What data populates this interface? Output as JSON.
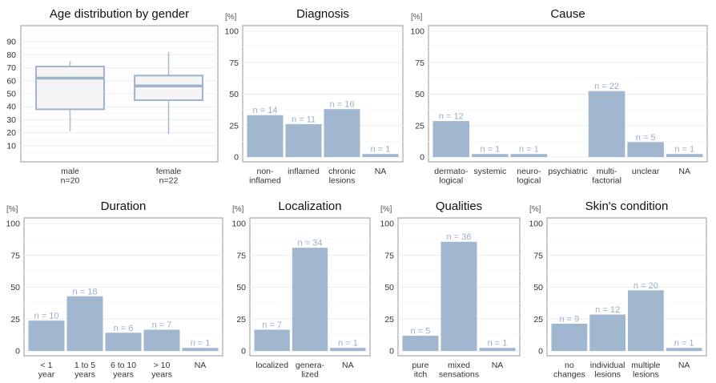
{
  "colors": {
    "bar": "#a1b6cf",
    "box": "#9fb4cc",
    "label": "#9aaec8"
  },
  "chart_data": [
    {
      "type": "box",
      "title": "Age distribution by gender",
      "ylabel": "",
      "ylim": [
        0,
        100
      ],
      "yticks": [
        10,
        20,
        30,
        40,
        50,
        60,
        70,
        80,
        90
      ],
      "grid": true,
      "categories": [
        "male\nn=20",
        "female\nn=22"
      ],
      "boxes": [
        {
          "whisker_low": 21,
          "q1": 38,
          "median": 62,
          "q3": 71,
          "whisker_high": 75
        },
        {
          "whisker_low": 19,
          "q1": 45,
          "median": 56,
          "q3": 64,
          "whisker_high": 82
        }
      ]
    },
    {
      "type": "bar",
      "title": "Diagnosis",
      "ylabel": "[%]",
      "ylim": [
        0,
        100
      ],
      "yticks": [
        0,
        25,
        50,
        75,
        100
      ],
      "grid": true,
      "categories": [
        "non-\ninflamed",
        "inflamed",
        "chronic\nlesions",
        "NA"
      ],
      "values": [
        33.3,
        26.2,
        38.1,
        2.4
      ],
      "labels": [
        "n = 14",
        "n = 11",
        "n = 16",
        "n = 1"
      ]
    },
    {
      "type": "bar",
      "title": "Cause",
      "ylabel": "[%]",
      "ylim": [
        0,
        100
      ],
      "yticks": [
        0,
        25,
        50,
        75,
        100
      ],
      "grid": true,
      "categories": [
        "dermato-\nlogical",
        "systemic",
        "neuro-\nlogical",
        "psychiatric",
        "multi-\nfactorial",
        "unclear",
        "NA"
      ],
      "values": [
        28.6,
        2.4,
        2.4,
        0,
        52.4,
        11.9,
        2.4
      ],
      "labels": [
        "n = 12",
        "n = 1",
        "n = 1",
        "",
        "n = 22",
        "n = 5",
        "n = 1"
      ]
    },
    {
      "type": "bar",
      "title": "Duration",
      "ylabel": "[%]",
      "ylim": [
        0,
        100
      ],
      "yticks": [
        0,
        25,
        50,
        75,
        100
      ],
      "grid": true,
      "categories": [
        "< 1\nyear",
        "1 to 5\nyears",
        "6 to 10\nyears",
        "> 10\nyears",
        "NA"
      ],
      "values": [
        23.8,
        42.9,
        14.3,
        16.7,
        2.4
      ],
      "labels": [
        "n = 10",
        "n = 18",
        "n = 6",
        "n = 7",
        "n = 1"
      ]
    },
    {
      "type": "bar",
      "title": "Localization",
      "ylabel": "[%]",
      "ylim": [
        0,
        100
      ],
      "yticks": [
        0,
        25,
        50,
        75,
        100
      ],
      "grid": true,
      "categories": [
        "localized",
        "genera-\nlized",
        "NA"
      ],
      "values": [
        16.7,
        81.0,
        2.4
      ],
      "labels": [
        "n = 7",
        "n = 34",
        "n = 1"
      ]
    },
    {
      "type": "bar",
      "title": "Qualities",
      "ylabel": "[%]",
      "ylim": [
        0,
        100
      ],
      "yticks": [
        0,
        25,
        50,
        75,
        100
      ],
      "grid": true,
      "categories": [
        "pure\nitch",
        "mixed\nsensations",
        "NA"
      ],
      "values": [
        11.9,
        85.7,
        2.4
      ],
      "labels": [
        "n = 5",
        "n = 36",
        "n = 1"
      ]
    },
    {
      "type": "bar",
      "title": "Skin's condition",
      "ylabel": "[%]",
      "ylim": [
        0,
        100
      ],
      "yticks": [
        0,
        25,
        50,
        75,
        100
      ],
      "grid": true,
      "categories": [
        "no\nchanges",
        "individual\nlesions",
        "multiple\nlesions",
        "NA"
      ],
      "values": [
        21.4,
        28.6,
        47.6,
        2.4
      ],
      "labels": [
        "n = 9",
        "n = 12",
        "n = 20",
        "n = 1"
      ]
    }
  ]
}
